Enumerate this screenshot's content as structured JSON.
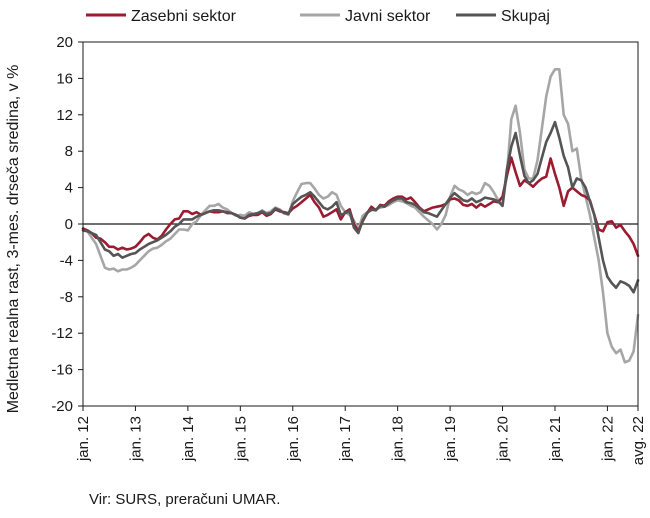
{
  "chart_data": {
    "type": "line",
    "ylabel": "Medletna realna rast, 3-mes. drseča sredina, v %",
    "ylim": [
      -20,
      20
    ],
    "yticks": [
      "20",
      "16",
      "12",
      "8",
      "4",
      "0",
      "-4",
      "-8",
      "-12",
      "-16",
      "-20"
    ],
    "x_start": "2012-01",
    "x_end": "2022-08",
    "xtick_labels": [
      {
        "label": "jan. 12",
        "index": 0
      },
      {
        "label": "jan. 13",
        "index": 12
      },
      {
        "label": "jan. 14",
        "index": 24
      },
      {
        "label": "jan. 15",
        "index": 36
      },
      {
        "label": "jan. 16",
        "index": 48
      },
      {
        "label": "jan. 17",
        "index": 60
      },
      {
        "label": "jan. 18",
        "index": 72
      },
      {
        "label": "jan. 19",
        "index": 84
      },
      {
        "label": "jan. 20",
        "index": 96
      },
      {
        "label": "jan. 21",
        "index": 108
      },
      {
        "label": "jan. 22",
        "index": 120
      },
      {
        "label": "avg. 22",
        "index": 127
      }
    ],
    "legend_placement": "top",
    "grid": false,
    "series": [
      {
        "name": "Zasebni sektor",
        "color": "#9b1b30",
        "values": [
          -0.5,
          -0.7,
          -1.0,
          -1.5,
          -1.6,
          -2.0,
          -2.5,
          -2.5,
          -2.8,
          -2.6,
          -2.8,
          -2.7,
          -2.5,
          -2.0,
          -1.4,
          -1.1,
          -1.5,
          -1.7,
          -1.3,
          -0.6,
          0.0,
          0.5,
          0.6,
          1.4,
          1.4,
          1.1,
          1.3,
          1.0,
          1.2,
          1.4,
          1.3,
          1.3,
          1.4,
          1.2,
          1.2,
          1.0,
          0.7,
          0.6,
          0.9,
          1.0,
          1.0,
          1.3,
          0.9,
          1.1,
          1.6,
          1.4,
          1.3,
          1.2,
          1.7,
          2.0,
          2.4,
          2.8,
          3.2,
          2.4,
          1.8,
          0.8,
          1.0,
          1.3,
          1.6,
          0.5,
          1.3,
          1.6,
          0.0,
          -0.8,
          0.3,
          1.2,
          1.9,
          1.5,
          2.1,
          2.0,
          2.5,
          2.8,
          3.0,
          3.0,
          2.7,
          2.9,
          2.4,
          1.8,
          1.4,
          1.6,
          1.8,
          1.9,
          2.0,
          2.2,
          2.7,
          2.8,
          2.6,
          2.1,
          2.0,
          2.2,
          1.8,
          2.2,
          1.9,
          2.2,
          2.5,
          2.4,
          3.0,
          5.3,
          7.3,
          5.7,
          4.2,
          4.8,
          4.5,
          4.1,
          4.6,
          5.0,
          5.2,
          7.2,
          5.5,
          4.0,
          2.0,
          3.6,
          4.0,
          3.6,
          3.2,
          3.0,
          2.6,
          1.0,
          -0.6,
          -0.8,
          0.2,
          0.3,
          -0.4,
          -0.1,
          -0.8,
          -1.4,
          -2.2,
          -3.5
        ]
      },
      {
        "name": "Javni sektor",
        "color": "#a6a6a6",
        "values": [
          -0.5,
          -0.8,
          -1.5,
          -2.2,
          -3.5,
          -4.8,
          -5.0,
          -4.9,
          -5.2,
          -5.0,
          -5.0,
          -4.8,
          -4.5,
          -4.0,
          -3.5,
          -3.0,
          -2.7,
          -2.6,
          -2.3,
          -1.9,
          -1.6,
          -1.1,
          -0.6,
          -0.6,
          -0.7,
          0.0,
          0.3,
          1.0,
          1.5,
          2.0,
          2.0,
          2.2,
          1.8,
          1.6,
          1.2,
          0.9,
          1.0,
          0.9,
          1.3,
          1.1,
          1.2,
          1.5,
          1.2,
          1.4,
          1.8,
          1.6,
          1.2,
          1.0,
          2.5,
          3.5,
          4.4,
          4.5,
          4.5,
          3.9,
          3.2,
          2.8,
          3.0,
          3.5,
          3.2,
          2.0,
          1.3,
          1.0,
          0.4,
          -0.6,
          0.9,
          1.3,
          1.5,
          1.6,
          1.8,
          1.9,
          2.1,
          2.4,
          2.6,
          2.5,
          2.3,
          2.0,
          1.8,
          1.3,
          0.8,
          0.4,
          0.0,
          -0.6,
          0.0,
          1.0,
          3.0,
          4.2,
          3.8,
          3.6,
          3.2,
          3.5,
          3.3,
          3.5,
          4.5,
          4.2,
          3.5,
          2.6,
          2.0,
          5.5,
          11.5,
          13.0,
          10.0,
          6.0,
          5.0,
          5.0,
          7.0,
          10.5,
          14.0,
          16.2,
          17.0,
          17.0,
          12.0,
          11.0,
          8.0,
          8.3,
          5.0,
          3.0,
          1.0,
          -1.5,
          -4.0,
          -7.5,
          -12.0,
          -13.5,
          -14.2,
          -13.8,
          -15.2,
          -15.0,
          -14.0,
          -10.0
        ]
      },
      {
        "name": "Skupaj",
        "color": "#555555",
        "values": [
          -0.7,
          -0.8,
          -1.0,
          -1.2,
          -2.0,
          -2.8,
          -3.0,
          -3.5,
          -3.3,
          -3.7,
          -3.5,
          -3.3,
          -3.2,
          -2.8,
          -2.5,
          -2.2,
          -2.0,
          -1.8,
          -1.5,
          -1.2,
          -0.8,
          -0.3,
          0.0,
          0.5,
          0.5,
          0.5,
          0.8,
          1.0,
          1.2,
          1.4,
          1.5,
          1.5,
          1.4,
          1.3,
          1.2,
          1.0,
          0.7,
          0.6,
          1.0,
          1.1,
          1.2,
          1.4,
          1.1,
          1.2,
          1.7,
          1.5,
          1.2,
          1.1,
          2.2,
          2.6,
          3.0,
          3.2,
          3.5,
          3.0,
          2.4,
          1.8,
          1.6,
          1.9,
          2.4,
          1.0,
          1.2,
          1.4,
          -0.4,
          -1.0,
          0.4,
          1.2,
          1.6,
          1.5,
          2.0,
          1.9,
          2.3,
          2.6,
          2.8,
          2.8,
          2.4,
          2.3,
          2.1,
          1.7,
          1.3,
          1.2,
          1.0,
          0.8,
          1.5,
          2.2,
          2.9,
          3.4,
          3.0,
          2.6,
          2.5,
          2.8,
          2.4,
          2.6,
          2.9,
          2.8,
          2.7,
          2.5,
          2.0,
          6.0,
          8.5,
          10.0,
          7.5,
          5.3,
          4.5,
          4.8,
          5.5,
          7.3,
          9.0,
          10.0,
          11.2,
          9.5,
          7.5,
          6.2,
          4.0,
          5.0,
          4.8,
          4.0,
          2.5,
          1.0,
          -1.5,
          -4.0,
          -5.8,
          -6.5,
          -7.0,
          -6.3,
          -6.5,
          -6.8,
          -7.5,
          -6.2
        ]
      }
    ],
    "source": "Vir: SURS, preračuni UMAR."
  }
}
